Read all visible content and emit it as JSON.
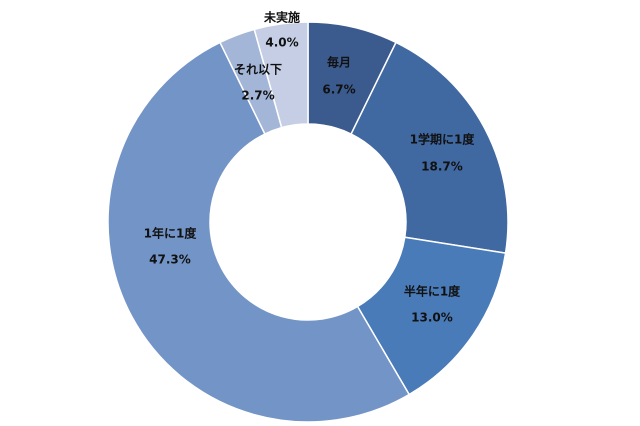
{
  "chart_data": {
    "type": "pie",
    "categories": [
      "毎月",
      "1学期に1度",
      "半年に1度",
      "1年に1度",
      "それ以下",
      "未実施"
    ],
    "values": [
      6.7,
      18.7,
      13.0,
      47.3,
      2.7,
      4.0
    ],
    "value_labels": [
      "6.7%",
      "18.7%",
      "13.0%",
      "47.3%",
      "2.7%",
      "4.0%"
    ],
    "colors": [
      "#3b5b8e",
      "#4068a1",
      "#4a7bb9",
      "#7394c6",
      "#a4b6d7",
      "#c5cee4"
    ]
  }
}
